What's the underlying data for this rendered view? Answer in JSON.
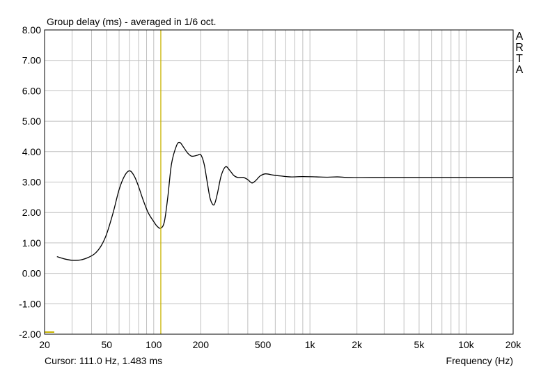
{
  "chart_data": {
    "type": "line",
    "title": "Group delay (ms) - averaged in 1/6 oct.",
    "xlabel": "Frequency (Hz)",
    "ylabel": "",
    "x_scale": "log",
    "xlim": [
      20,
      20000
    ],
    "ylim": [
      -2,
      8
    ],
    "x_ticks": [
      {
        "value": 20,
        "label": "20"
      },
      {
        "value": 50,
        "label": "50"
      },
      {
        "value": 100,
        "label": "100"
      },
      {
        "value": 200,
        "label": "200"
      },
      {
        "value": 500,
        "label": "500"
      },
      {
        "value": 1000,
        "label": "1k"
      },
      {
        "value": 2000,
        "label": "2k"
      },
      {
        "value": 5000,
        "label": "5k"
      },
      {
        "value": 10000,
        "label": "10k"
      },
      {
        "value": 20000,
        "label": "20k"
      }
    ],
    "y_ticks": [
      {
        "value": 8,
        "label": "8.00"
      },
      {
        "value": 7,
        "label": "7.00"
      },
      {
        "value": 6,
        "label": "6.00"
      },
      {
        "value": 5,
        "label": "5.00"
      },
      {
        "value": 4,
        "label": "4.00"
      },
      {
        "value": 3,
        "label": "3.00"
      },
      {
        "value": 2,
        "label": "2.00"
      },
      {
        "value": 1,
        "label": "1.00"
      },
      {
        "value": 0,
        "label": "0.00"
      },
      {
        "value": -1,
        "label": "-1.00"
      },
      {
        "value": -2,
        "label": "-2.00"
      }
    ],
    "grid": true,
    "series": [
      {
        "color": "#000000",
        "points": [
          [
            24,
            0.55
          ],
          [
            27,
            0.47
          ],
          [
            30,
            0.43
          ],
          [
            34,
            0.44
          ],
          [
            38,
            0.52
          ],
          [
            42,
            0.65
          ],
          [
            46,
            0.9
          ],
          [
            50,
            1.3
          ],
          [
            55,
            2.0
          ],
          [
            60,
            2.75
          ],
          [
            65,
            3.2
          ],
          [
            70,
            3.37
          ],
          [
            75,
            3.2
          ],
          [
            80,
            2.85
          ],
          [
            85,
            2.45
          ],
          [
            92,
            2.0
          ],
          [
            100,
            1.7
          ],
          [
            105,
            1.55
          ],
          [
            111,
            1.483
          ],
          [
            117,
            1.7
          ],
          [
            123,
            2.5
          ],
          [
            130,
            3.6
          ],
          [
            140,
            4.2
          ],
          [
            147,
            4.3
          ],
          [
            155,
            4.15
          ],
          [
            165,
            3.95
          ],
          [
            175,
            3.85
          ],
          [
            190,
            3.88
          ],
          [
            200,
            3.9
          ],
          [
            210,
            3.6
          ],
          [
            220,
            3.0
          ],
          [
            230,
            2.45
          ],
          [
            243,
            2.25
          ],
          [
            255,
            2.6
          ],
          [
            270,
            3.2
          ],
          [
            288,
            3.5
          ],
          [
            305,
            3.4
          ],
          [
            325,
            3.22
          ],
          [
            345,
            3.15
          ],
          [
            375,
            3.15
          ],
          [
            400,
            3.08
          ],
          [
            425,
            2.97
          ],
          [
            450,
            3.05
          ],
          [
            480,
            3.2
          ],
          [
            520,
            3.27
          ],
          [
            580,
            3.23
          ],
          [
            650,
            3.2
          ],
          [
            750,
            3.17
          ],
          [
            900,
            3.18
          ],
          [
            1100,
            3.17
          ],
          [
            1300,
            3.16
          ],
          [
            1500,
            3.17
          ],
          [
            1800,
            3.15
          ],
          [
            2500,
            3.15
          ],
          [
            5000,
            3.15
          ],
          [
            10000,
            3.15
          ],
          [
            20000,
            3.15
          ]
        ]
      }
    ],
    "cursor": {
      "x": 111.0,
      "y": 1.483,
      "color": "#c8b400"
    },
    "cursor_readout": "Cursor: 111.0 Hz, 1.483 ms",
    "brand": [
      "A",
      "R",
      "T",
      "A"
    ],
    "colors": {
      "grid": "#c0c0c0",
      "curve": "#000000",
      "cursor": "#c8b400",
      "axes": "#000000"
    }
  }
}
